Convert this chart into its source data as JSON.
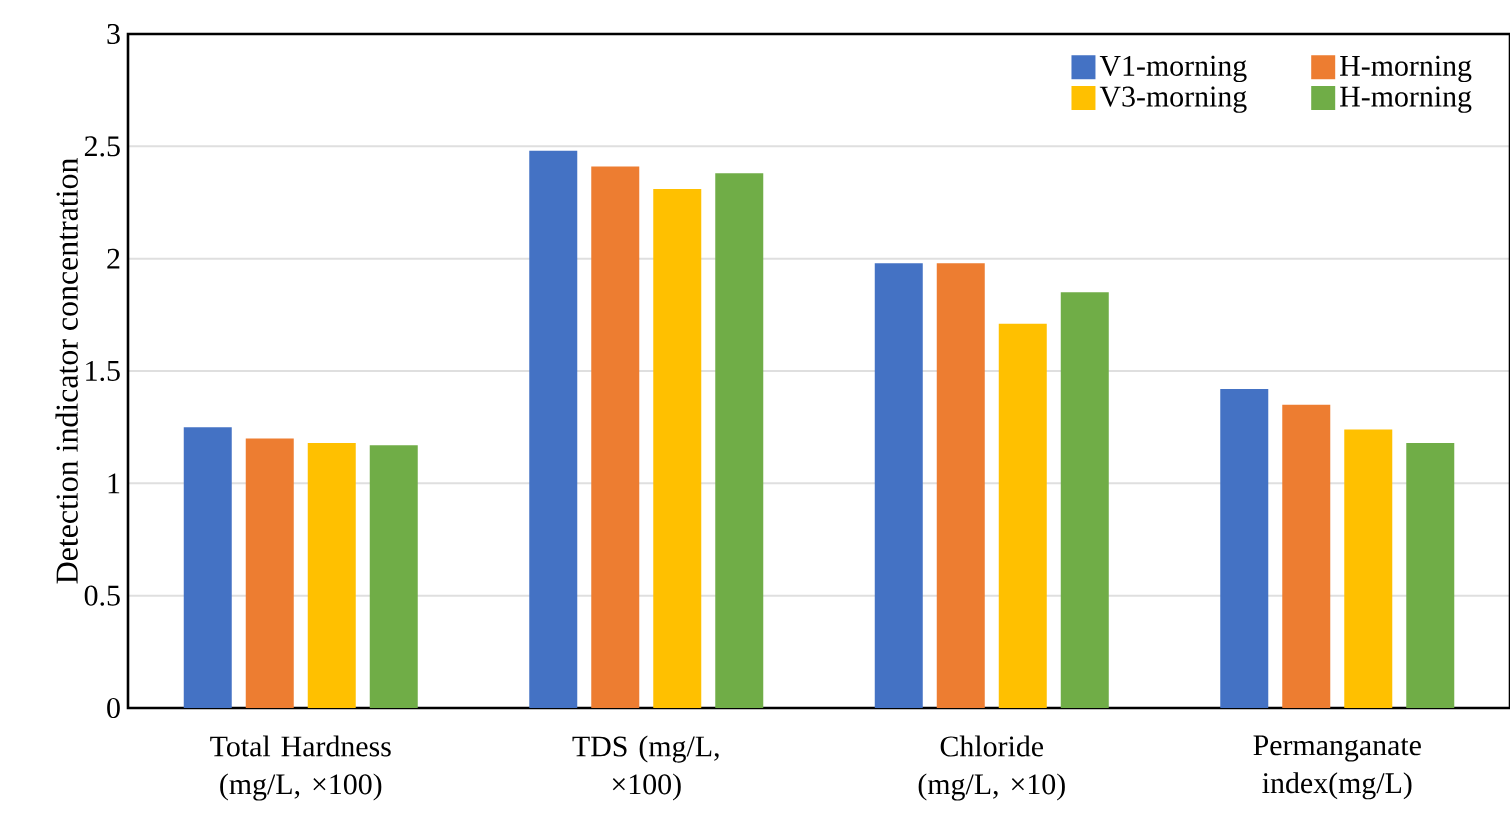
{
  "chart_data": {
    "type": "bar",
    "ylabel": "Detection indicator concentration",
    "categories": [
      "Total Hardness (mg/L, ×100)",
      "TDS (mg/L, ×100)",
      "Chloride (mg/L, ×10)",
      "Permanganate index(mg/L)"
    ],
    "series": [
      {
        "name": "V1-morning",
        "color": "#4472c4",
        "values": [
          1.25,
          2.48,
          1.98,
          1.42
        ]
      },
      {
        "name": "H-morning",
        "color": "#ed7d31",
        "values": [
          1.2,
          2.41,
          1.98,
          1.35
        ]
      },
      {
        "name": "V3-morning",
        "color": "#ffc000",
        "values": [
          1.18,
          2.31,
          1.71,
          1.24
        ]
      },
      {
        "name": "H-morning",
        "color": "#70ad47",
        "values": [
          1.17,
          2.38,
          1.85,
          1.18
        ]
      }
    ],
    "ylim": [
      0,
      3
    ],
    "yticks": [
      0,
      0.5,
      1,
      1.5,
      2,
      2.5,
      3
    ],
    "grid": "y",
    "legend": "top right"
  }
}
